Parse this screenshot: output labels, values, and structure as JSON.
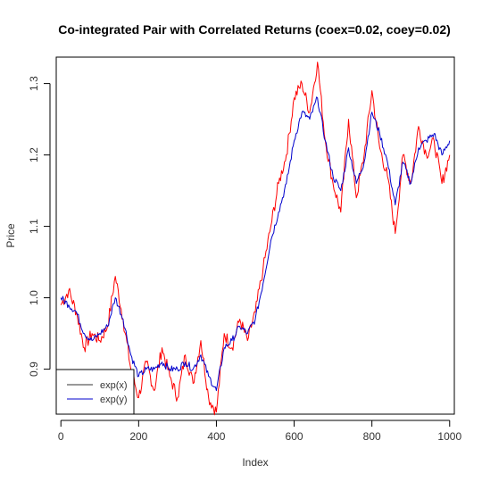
{
  "chart_data": {
    "type": "line",
    "title": "Co-integrated Pair with Correlated Returns (coex=0.02,  coey=0.02)",
    "xlabel": "Index",
    "ylabel": "Price",
    "xlim": [
      -12,
      1012
    ],
    "ylim": [
      0.837,
      1.337
    ],
    "xticks": [
      0,
      200,
      400,
      600,
      800,
      1000
    ],
    "xtick_labels": [
      "0",
      "200",
      "400",
      "600",
      "800",
      "1000"
    ],
    "yticks": [
      0.9,
      1.0,
      1.1,
      1.2,
      1.3
    ],
    "ytick_labels": [
      "0.9",
      "1.0",
      "1.1",
      "1.2",
      "1.3"
    ],
    "grid": false,
    "legend_position": "bottom-left",
    "series": [
      {
        "name": "exp(x)",
        "color": "#ff0000",
        "x": [
          0,
          20,
          40,
          60,
          80,
          100,
          120,
          140,
          160,
          180,
          200,
          220,
          240,
          260,
          280,
          300,
          320,
          340,
          360,
          380,
          400,
          420,
          440,
          460,
          480,
          500,
          520,
          540,
          560,
          580,
          600,
          620,
          640,
          660,
          680,
          700,
          720,
          740,
          760,
          780,
          800,
          820,
          840,
          860,
          880,
          900,
          920,
          940,
          960,
          980,
          1000
        ],
        "values": [
          0.99,
          1.01,
          0.98,
          0.93,
          0.95,
          0.94,
          0.96,
          1.03,
          0.97,
          0.9,
          0.86,
          0.91,
          0.87,
          0.93,
          0.89,
          0.86,
          0.92,
          0.88,
          0.94,
          0.86,
          0.84,
          0.95,
          0.93,
          0.97,
          0.94,
          0.98,
          1.04,
          1.1,
          1.16,
          1.2,
          1.28,
          1.3,
          1.26,
          1.33,
          1.22,
          1.16,
          1.12,
          1.25,
          1.14,
          1.2,
          1.29,
          1.21,
          1.17,
          1.09,
          1.2,
          1.16,
          1.24,
          1.2,
          1.22,
          1.16,
          1.2
        ]
      },
      {
        "name": "exp(y)",
        "color": "#0000cc",
        "x": [
          0,
          20,
          40,
          60,
          80,
          100,
          120,
          140,
          160,
          180,
          200,
          220,
          240,
          260,
          280,
          300,
          320,
          340,
          360,
          380,
          400,
          420,
          440,
          460,
          480,
          500,
          520,
          540,
          560,
          580,
          600,
          620,
          640,
          660,
          680,
          700,
          720,
          740,
          760,
          780,
          800,
          820,
          840,
          860,
          880,
          900,
          920,
          940,
          960,
          980,
          1000
        ],
        "values": [
          1.0,
          0.99,
          0.98,
          0.95,
          0.94,
          0.95,
          0.96,
          1.0,
          0.97,
          0.92,
          0.89,
          0.9,
          0.9,
          0.91,
          0.9,
          0.9,
          0.91,
          0.9,
          0.92,
          0.89,
          0.87,
          0.93,
          0.94,
          0.96,
          0.95,
          0.97,
          1.02,
          1.08,
          1.12,
          1.16,
          1.22,
          1.26,
          1.25,
          1.28,
          1.22,
          1.17,
          1.15,
          1.21,
          1.16,
          1.19,
          1.26,
          1.23,
          1.19,
          1.13,
          1.19,
          1.16,
          1.21,
          1.22,
          1.23,
          1.2,
          1.22
        ]
      }
    ]
  }
}
